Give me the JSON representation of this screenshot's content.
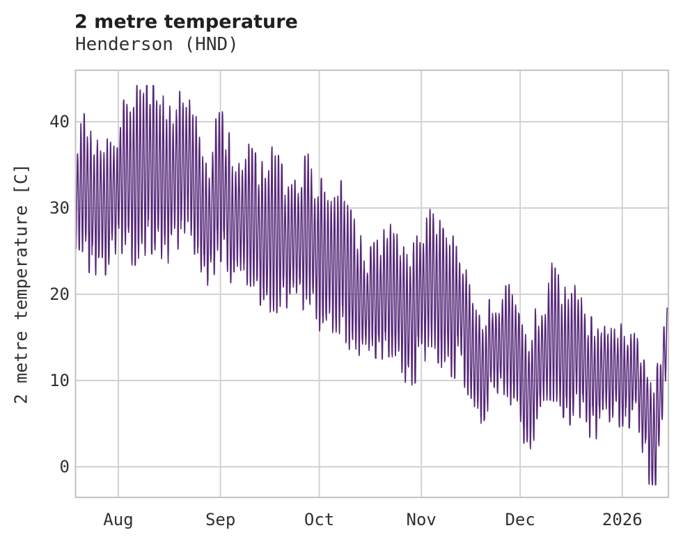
{
  "chart_data": {
    "type": "line",
    "title": "2 metre temperature",
    "subtitle": "Henderson (HND)",
    "ylabel": "2 metre temperature [C]",
    "series_name": "2 metre temperature",
    "sampling": "hourly",
    "line_color": "#562778",
    "grid_color": "#d2d2d2",
    "spine_color": "#c6c6c6",
    "text_color": "#303030",
    "grid_on": true,
    "legend": "none",
    "xlim_days_rel_aug1": [
      -13,
      167
    ],
    "ylim": [
      -3.55,
      45.97
    ],
    "y_ticks": [
      0,
      10,
      20,
      30,
      40
    ],
    "x_ticks": [
      {
        "label": "Aug",
        "day": 0
      },
      {
        "label": "Sep",
        "day": 31
      },
      {
        "label": "Oct",
        "day": 61
      },
      {
        "label": "Nov",
        "day": 92
      },
      {
        "label": "Dec",
        "day": 122
      },
      {
        "label": "2026",
        "day": 153
      }
    ],
    "data_min": -2.1,
    "data_max": 44.2,
    "daily_envelope": {
      "comment": "piecewise-linear envelope of daily max/min temperature [C]; day is days since Aug 1 (negative = July 2025, 153+ = Jan 2026)",
      "day": [
        -13,
        -11,
        -8,
        -5,
        -2,
        1,
        4,
        7,
        10,
        13,
        16,
        19,
        22,
        25,
        27,
        30,
        32,
        35,
        38,
        41,
        44,
        47,
        50,
        53,
        56,
        58,
        60,
        62,
        65,
        68,
        71,
        73,
        76,
        79,
        82,
        85,
        88,
        91,
        94,
        96,
        99,
        102,
        105,
        108,
        110,
        113,
        116,
        119,
        122,
        124,
        127,
        130,
        131,
        134,
        137,
        140,
        142,
        145,
        148,
        151,
        154,
        157,
        159,
        161,
        163,
        165,
        167
      ],
      "tmax": [
        35.5,
        40.3,
        37.5,
        36.0,
        37.5,
        41.0,
        42.5,
        43.5,
        44.0,
        42.5,
        41.0,
        42.5,
        43.0,
        39.0,
        34.5,
        39.8,
        40.0,
        36.0,
        37.0,
        35.5,
        34.0,
        36.5,
        33.5,
        33.5,
        34.0,
        36.5,
        31.0,
        32.5,
        29.5,
        32.3,
        28.0,
        26.5,
        24.0,
        25.5,
        27.0,
        27.5,
        24.0,
        27.0,
        28.5,
        29.0,
        26.0,
        25.5,
        23.0,
        18.0,
        16.0,
        18.5,
        19.5,
        20.0,
        16.0,
        14.5,
        17.5,
        19.5,
        22.8,
        21.0,
        19.5,
        20.5,
        17.0,
        15.5,
        16.5,
        16.0,
        15.5,
        17.0,
        13.0,
        10.0,
        8.5,
        15.0,
        22.3
      ],
      "tmin": [
        26.5,
        25.5,
        23.0,
        22.8,
        24.5,
        26.0,
        24.0,
        25.5,
        26.0,
        23.5,
        25.0,
        26.5,
        27.0,
        24.0,
        20.0,
        25.0,
        25.0,
        21.5,
        23.0,
        21.0,
        19.5,
        18.5,
        20.0,
        19.0,
        18.0,
        17.5,
        17.5,
        16.5,
        15.5,
        16.0,
        14.0,
        13.0,
        14.5,
        13.5,
        14.0,
        12.5,
        9.5,
        11.5,
        13.5,
        14.0,
        12.0,
        11.5,
        10.5,
        8.0,
        5.5,
        8.5,
        9.0,
        8.0,
        6.0,
        1.0,
        5.0,
        7.5,
        9.0,
        7.5,
        6.0,
        7.0,
        5.0,
        3.5,
        5.0,
        6.0,
        5.5,
        6.0,
        2.0,
        -1.0,
        -2.0,
        4.5,
        12.0
      ]
    }
  }
}
